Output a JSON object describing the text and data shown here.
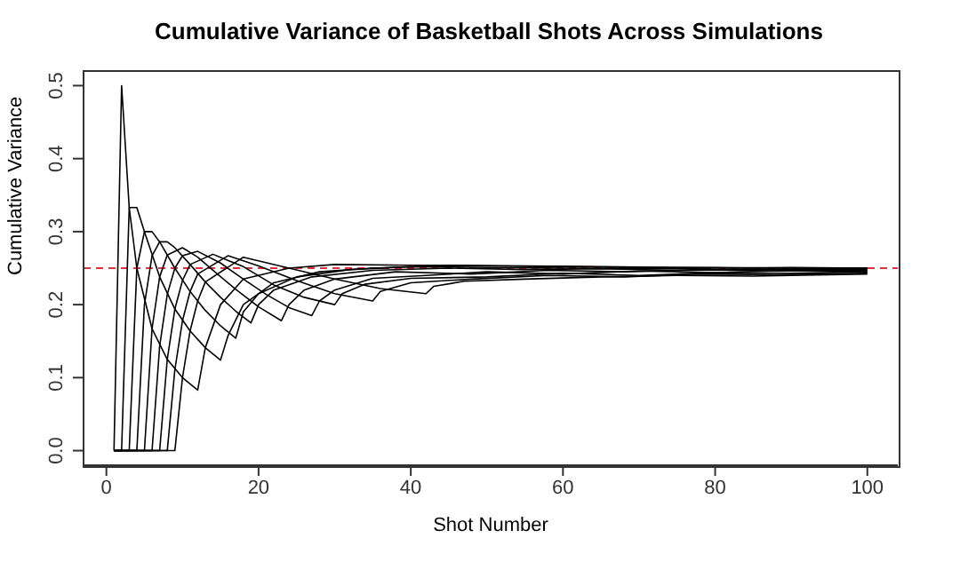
{
  "chart_data": {
    "type": "line",
    "title": "Cumulative Variance of Basketball Shots Across Simulations",
    "xlabel": "Shot Number",
    "ylabel": "Cumulative Variance",
    "series": [
      {
        "color": "#000000",
        "x": [
          1,
          2,
          3,
          4,
          6,
          8,
          10,
          12,
          13,
          15,
          18,
          24,
          30,
          40,
          50,
          60,
          70,
          80,
          90,
          100
        ],
        "values": [
          0,
          0.5,
          0.333,
          0.25,
          0.167,
          0.125,
          0.1,
          0.083,
          0.141,
          0.2,
          0.235,
          0.25,
          0.255,
          0.254,
          0.253,
          0.252,
          0.251,
          0.251,
          0.25,
          0.25
        ]
      },
      {
        "color": "#000000",
        "x": [
          1,
          2,
          3,
          4,
          5,
          7,
          9,
          11,
          13,
          15,
          16,
          18,
          22,
          28,
          35,
          45,
          55,
          65,
          75,
          85,
          100
        ],
        "values": [
          0,
          0,
          0.333,
          0.333,
          0.3,
          0.238,
          0.194,
          0.164,
          0.141,
          0.124,
          0.158,
          0.2,
          0.23,
          0.245,
          0.25,
          0.254,
          0.253,
          0.252,
          0.251,
          0.25,
          0.25
        ]
      },
      {
        "color": "#000000",
        "x": [
          1,
          3,
          4,
          5,
          6,
          7,
          9,
          11,
          13,
          15,
          17,
          18,
          20,
          25,
          32,
          40,
          50,
          60,
          70,
          80,
          90,
          100
        ],
        "values": [
          0,
          0,
          0.25,
          0.3,
          0.3,
          0.286,
          0.25,
          0.218,
          0.192,
          0.171,
          0.154,
          0.19,
          0.215,
          0.238,
          0.248,
          0.252,
          0.251,
          0.25,
          0.249,
          0.25,
          0.251,
          0.25
        ]
      },
      {
        "color": "#000000",
        "x": [
          1,
          4,
          5,
          6,
          7,
          8,
          9,
          11,
          13,
          15,
          17,
          19,
          20,
          22,
          27,
          35,
          45,
          55,
          65,
          75,
          85,
          100
        ],
        "values": [
          0,
          0,
          0.2,
          0.267,
          0.286,
          0.286,
          0.278,
          0.255,
          0.231,
          0.21,
          0.191,
          0.175,
          0.2,
          0.22,
          0.238,
          0.247,
          0.25,
          0.248,
          0.249,
          0.247,
          0.248,
          0.248
        ]
      },
      {
        "color": "#000000",
        "x": [
          1,
          5,
          6,
          7,
          8,
          10,
          12,
          14,
          17,
          20,
          23,
          24,
          26,
          30,
          38,
          48,
          58,
          68,
          78,
          88,
          100
        ],
        "values": [
          0,
          0,
          0.167,
          0.238,
          0.268,
          0.278,
          0.265,
          0.247,
          0.221,
          0.197,
          0.178,
          0.2,
          0.22,
          0.235,
          0.245,
          0.242,
          0.247,
          0.245,
          0.248,
          0.246,
          0.247
        ]
      },
      {
        "color": "#000000",
        "x": [
          1,
          6,
          7,
          8,
          9,
          10,
          12,
          15,
          18,
          21,
          24,
          27,
          28,
          30,
          35,
          42,
          50,
          60,
          70,
          80,
          90,
          100
        ],
        "values": [
          0,
          0,
          0.143,
          0.214,
          0.25,
          0.267,
          0.273,
          0.257,
          0.235,
          0.214,
          0.196,
          0.185,
          0.205,
          0.22,
          0.236,
          0.24,
          0.245,
          0.242,
          0.246,
          0.244,
          0.247,
          0.245
        ]
      },
      {
        "color": "#000000",
        "x": [
          1,
          7,
          8,
          9,
          10,
          11,
          14,
          18,
          22,
          26,
          30,
          31,
          34,
          40,
          50,
          60,
          70,
          80,
          90,
          100
        ],
        "values": [
          0,
          0,
          0.125,
          0.194,
          0.233,
          0.255,
          0.269,
          0.252,
          0.227,
          0.21,
          0.2,
          0.215,
          0.228,
          0.236,
          0.238,
          0.243,
          0.24,
          0.244,
          0.243,
          0.245
        ]
      },
      {
        "color": "#000000",
        "x": [
          1,
          8,
          9,
          10,
          11,
          12,
          16,
          20,
          25,
          30,
          35,
          36,
          40,
          48,
          58,
          68,
          78,
          88,
          100
        ],
        "values": [
          0,
          0,
          0.111,
          0.178,
          0.218,
          0.242,
          0.267,
          0.253,
          0.233,
          0.215,
          0.205,
          0.218,
          0.23,
          0.235,
          0.24,
          0.238,
          0.242,
          0.241,
          0.243
        ]
      },
      {
        "color": "#000000",
        "x": [
          1,
          9,
          10,
          11,
          12,
          13,
          18,
          24,
          30,
          36,
          42,
          43,
          47,
          55,
          65,
          75,
          85,
          100
        ],
        "values": [
          0,
          0,
          0.1,
          0.164,
          0.205,
          0.231,
          0.265,
          0.25,
          0.235,
          0.222,
          0.215,
          0.225,
          0.232,
          0.235,
          0.238,
          0.24,
          0.239,
          0.242
        ]
      }
    ],
    "xlim": [
      -3,
      104
    ],
    "ylim": [
      -0.02,
      0.52
    ],
    "xticks": [
      0,
      20,
      40,
      60,
      80,
      100
    ],
    "yticks": [
      {
        "value": 0,
        "label": "0.0"
      },
      0.1,
      0.2,
      0.3,
      0.4,
      0.5
    ],
    "ref_lines": [
      {
        "axis": "y",
        "value": 0.25,
        "color": "#e0303a",
        "line_style": "dashed"
      }
    ]
  }
}
